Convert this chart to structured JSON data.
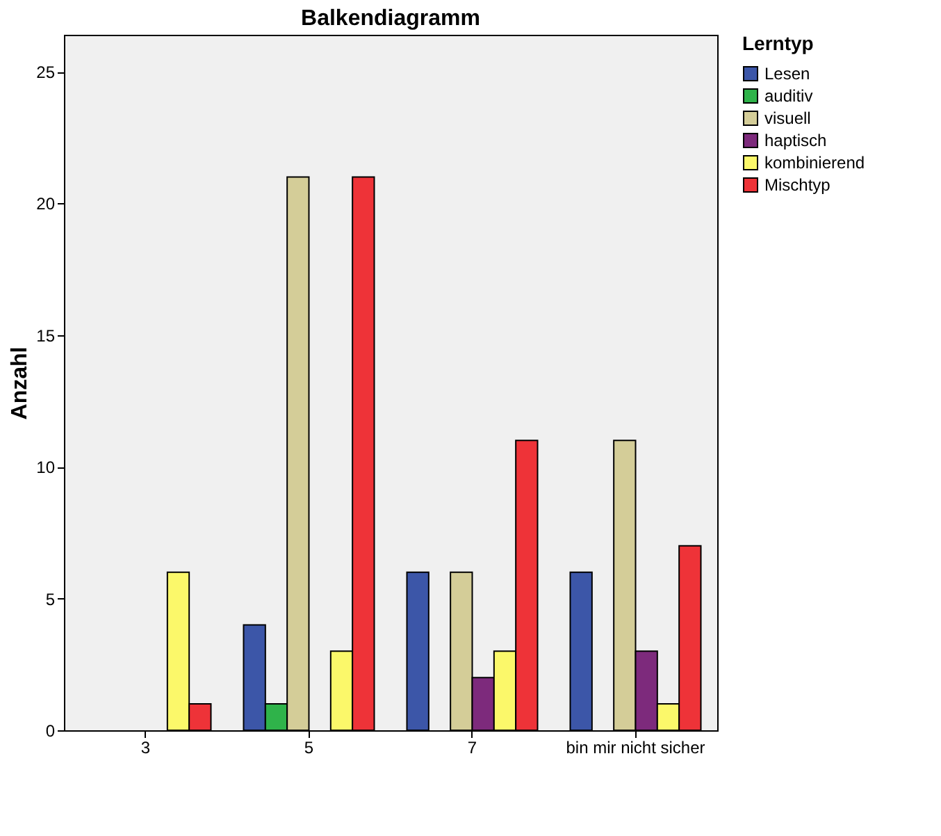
{
  "chart_data": {
    "type": "bar",
    "title": "Balkendiagramm",
    "ylabel": "Anzahl",
    "legend_title": "Lerntyp",
    "categories": [
      "3",
      "5",
      "7",
      "bin mir nicht sicher"
    ],
    "series": [
      {
        "name": "Lesen",
        "color": "#3c56a8",
        "values": [
          null,
          4,
          6,
          6
        ]
      },
      {
        "name": "auditiv",
        "color": "#2fb34a",
        "values": [
          null,
          1,
          null,
          null
        ]
      },
      {
        "name": "visuell",
        "color": "#d4cd98",
        "values": [
          null,
          21,
          6,
          11
        ]
      },
      {
        "name": "haptisch",
        "color": "#7d2a7c",
        "values": [
          null,
          null,
          2,
          3
        ]
      },
      {
        "name": "kombinierend",
        "color": "#fbf86a",
        "values": [
          6,
          3,
          3,
          1
        ]
      },
      {
        "name": "Mischtyp",
        "color": "#ee3338",
        "values": [
          1,
          21,
          11,
          7
        ]
      }
    ],
    "ylim": [
      0,
      26.4
    ],
    "yticks": [
      0,
      5,
      10,
      15,
      20,
      25
    ],
    "grid": false,
    "legend": "right"
  }
}
